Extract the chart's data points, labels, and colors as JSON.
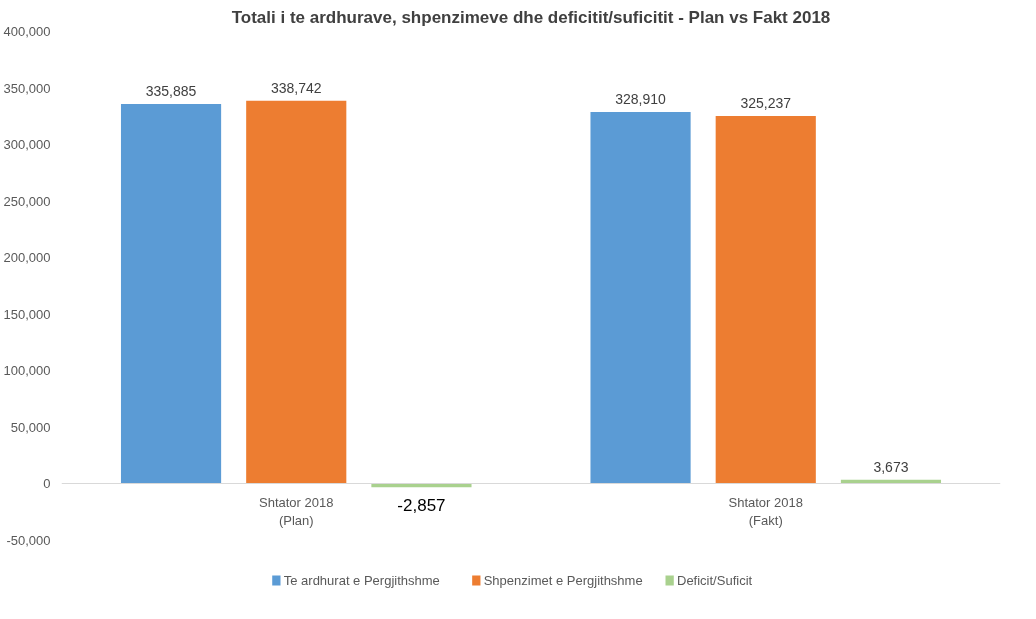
{
  "chart_data": {
    "type": "bar",
    "title": "Totali i te ardhurave, shpenzimeve dhe deficitit/suficitit - Plan vs Fakt 2018",
    "categories": [
      "Shtator 2018\n(Plan)",
      "Shtator 2018\n(Fakt)"
    ],
    "series": [
      {
        "name": "Te ardhurat e Pergjithshme",
        "color": "#5b9bd5",
        "values": [
          335885,
          328910
        ],
        "value_labels": [
          "335,885",
          "328,910"
        ]
      },
      {
        "name": "Shpenzimet e Pergjithshme",
        "color": "#ed7d31",
        "values": [
          338742,
          325237
        ],
        "value_labels": [
          "338,742",
          "325,237"
        ]
      },
      {
        "name": "Deficit/Suficit",
        "color": "#a9d18e",
        "values": [
          -2857,
          3673
        ],
        "value_labels": [
          "-2,857",
          "3,673"
        ]
      }
    ],
    "ylim": [
      -50000,
      400000
    ],
    "yticks": [
      {
        "value": -50000,
        "label": "-50,000"
      },
      {
        "value": 0,
        "label": "0"
      },
      {
        "value": 50000,
        "label": "50,000"
      },
      {
        "value": 100000,
        "label": "100,000"
      },
      {
        "value": 150000,
        "label": "150,000"
      },
      {
        "value": 200000,
        "label": "200,000"
      },
      {
        "value": 250000,
        "label": "250,000"
      },
      {
        "value": 300000,
        "label": "300,000"
      },
      {
        "value": 350000,
        "label": "350,000"
      },
      {
        "value": 400000,
        "label": "400,000"
      }
    ],
    "legend": "bottom"
  }
}
